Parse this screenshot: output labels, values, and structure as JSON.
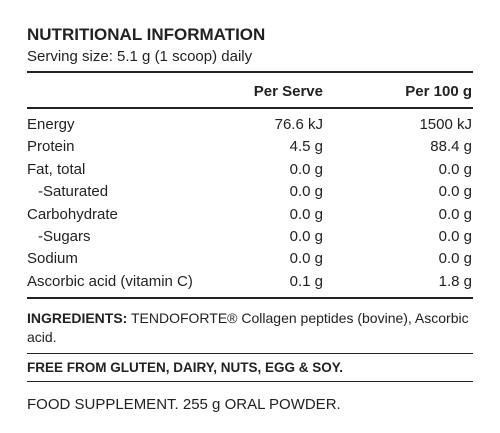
{
  "header": {
    "title": "NUTRITIONAL INFORMATION",
    "serving": "Serving size: 5.1 g (1 scoop) daily"
  },
  "table": {
    "columns": [
      "Per Serve",
      "Per 100 g"
    ],
    "rows": [
      [
        "Energy",
        "76.6 kJ",
        "1500 kJ"
      ],
      [
        "Protein",
        "4.5 g",
        "88.4 g"
      ],
      [
        "Fat, total",
        "0.0 g",
        "0.0 g"
      ],
      [
        "-Saturated",
        "0.0 g",
        "0.0 g"
      ],
      [
        "Carbohydrate",
        "0.0 g",
        "0.0 g"
      ],
      [
        "-Sugars",
        "0.0 g",
        "0.0 g"
      ],
      [
        "Sodium",
        "0.0 g",
        "0.0 g"
      ],
      [
        "Ascorbic acid (vitamin C)",
        "0.1 g",
        "1.8 g"
      ]
    ]
  },
  "ingredients": {
    "label": "INGREDIENTS:",
    "text": "TENDOFORTE® Collagen peptides (bovine), Ascorbic acid."
  },
  "free_from": "FREE FROM GLUTEN, DAIRY, NUTS, EGG & SOY.",
  "footer": "FOOD SUPPLEMENT. 255 g ORAL POWDER."
}
